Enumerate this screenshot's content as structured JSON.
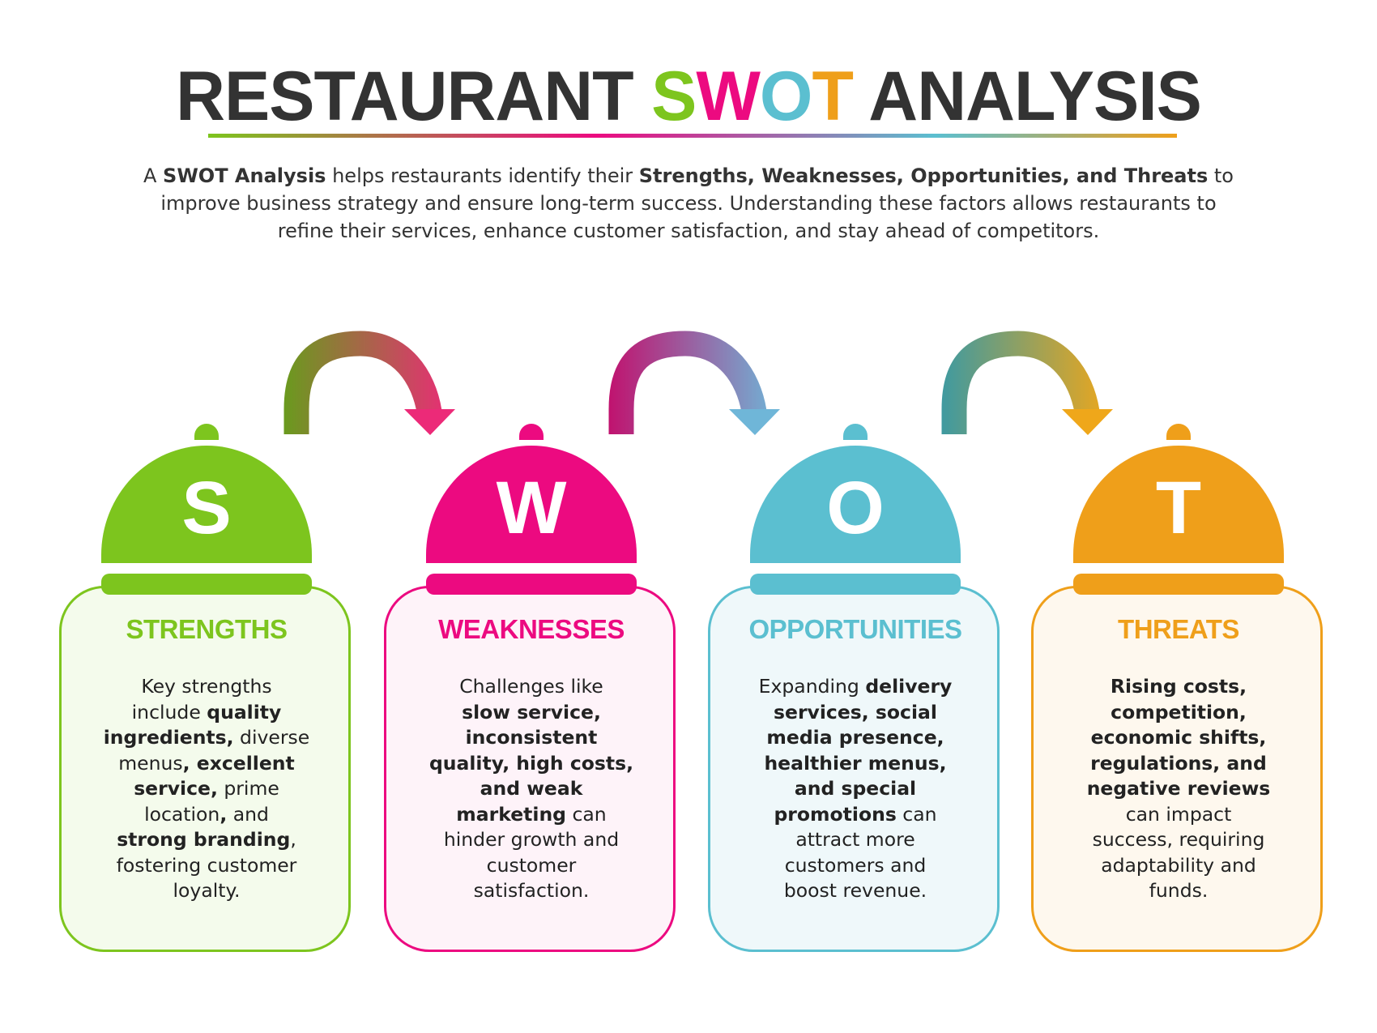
{
  "title": {
    "before": "RESTAURANT ",
    "s": "S",
    "w": "W",
    "o": "O",
    "t": "T",
    "after": " ANALYSIS"
  },
  "intro": [
    [
      {
        "t": "A ",
        "b": false
      },
      {
        "t": "SWOT Analysis",
        "b": true
      },
      {
        "t": " helps restaurants identify their ",
        "b": false
      },
      {
        "t": "Strengths, Weaknesses, Opportunities, and Threats",
        "b": true
      },
      {
        "t": " to",
        "b": false
      }
    ],
    [
      {
        "t": "improve business strategy and ensure long-term success. Understanding these factors allows restaurants to",
        "b": false
      }
    ],
    [
      {
        "t": "refine their services, enhance customer satisfaction, and stay ahead of competitors.",
        "b": false
      }
    ]
  ],
  "colors": {
    "strengths": "#7dc51e",
    "weaknesses": "#ec0a80",
    "opportunities": "#5bbfd0",
    "threats": "#ef9f1a",
    "title": "#333333"
  },
  "cards": [
    {
      "letter": "S",
      "heading": "STRENGTHS",
      "color": "#7dc51e",
      "bg": "#f4fbec",
      "lines": [
        [
          {
            "t": "Key strengths",
            "b": false
          }
        ],
        [
          {
            "t": "include ",
            "b": false
          },
          {
            "t": "quality",
            "b": true
          }
        ],
        [
          {
            "t": "ingredients,",
            "b": true
          },
          {
            "t": " diverse",
            "b": false
          }
        ],
        [
          {
            "t": "menus",
            "b": false
          },
          {
            "t": ", excellent",
            "b": true
          }
        ],
        [
          {
            "t": "service,",
            "b": true
          },
          {
            "t": " prime",
            "b": false
          }
        ],
        [
          {
            "t": "location",
            "b": false
          },
          {
            "t": ",",
            "b": true
          },
          {
            "t": " and",
            "b": false
          }
        ],
        [
          {
            "t": "strong branding",
            "b": true
          },
          {
            "t": ",",
            "b": false
          }
        ],
        [
          {
            "t": "fostering customer",
            "b": false
          }
        ],
        [
          {
            "t": "loyalty.",
            "b": false
          }
        ]
      ]
    },
    {
      "letter": "W",
      "heading": "WEAKNESSES",
      "color": "#ec0a80",
      "bg": "#fef3f9",
      "lines": [
        [
          {
            "t": "Challenges like",
            "b": false
          }
        ],
        [
          {
            "t": "slow service,",
            "b": true
          }
        ],
        [
          {
            "t": "inconsistent",
            "b": true
          }
        ],
        [
          {
            "t": "quality, high costs,",
            "b": true
          }
        ],
        [
          {
            "t": "and weak",
            "b": true
          }
        ],
        [
          {
            "t": "marketing",
            "b": true
          },
          {
            "t": " can",
            "b": false
          }
        ],
        [
          {
            "t": "hinder growth and",
            "b": false
          }
        ],
        [
          {
            "t": "customer",
            "b": false
          }
        ],
        [
          {
            "t": "satisfaction.",
            "b": false
          }
        ]
      ]
    },
    {
      "letter": "O",
      "heading": "OPPORTUNITIES",
      "color": "#5bbfd0",
      "bg": "#eff8fa",
      "lines": [
        [
          {
            "t": "Expanding ",
            "b": false
          },
          {
            "t": "delivery",
            "b": true
          }
        ],
        [
          {
            "t": "services, social",
            "b": true
          }
        ],
        [
          {
            "t": "media presence,",
            "b": true
          }
        ],
        [
          {
            "t": "healthier menus,",
            "b": true
          }
        ],
        [
          {
            "t": "and special",
            "b": true
          }
        ],
        [
          {
            "t": "promotions",
            "b": true
          },
          {
            "t": " can",
            "b": false
          }
        ],
        [
          {
            "t": "attract more",
            "b": false
          }
        ],
        [
          {
            "t": "customers and",
            "b": false
          }
        ],
        [
          {
            "t": "boost revenue.",
            "b": false
          }
        ]
      ]
    },
    {
      "letter": "T",
      "heading": "THREATS",
      "color": "#ef9f1a",
      "bg": "#fef8ee",
      "lines": [
        [
          {
            "t": "Rising costs,",
            "b": true
          }
        ],
        [
          {
            "t": "competition,",
            "b": true
          }
        ],
        [
          {
            "t": "economic shifts,",
            "b": true
          }
        ],
        [
          {
            "t": "regulations, and",
            "b": true
          }
        ],
        [
          {
            "t": "negative reviews",
            "b": true
          }
        ],
        [
          {
            "t": "can impact",
            "b": false
          }
        ],
        [
          {
            "t": "success, requiring",
            "b": false
          }
        ],
        [
          {
            "t": "adaptability and",
            "b": false
          }
        ],
        [
          {
            "t": "funds.",
            "b": false
          }
        ]
      ]
    }
  ],
  "arrows": [
    {
      "from": "#6a9a1e",
      "to": "#ec2a78"
    },
    {
      "from": "#c0136f",
      "to": "#6fb6d8"
    },
    {
      "from": "#3f9aa0",
      "to": "#efa71a"
    }
  ]
}
